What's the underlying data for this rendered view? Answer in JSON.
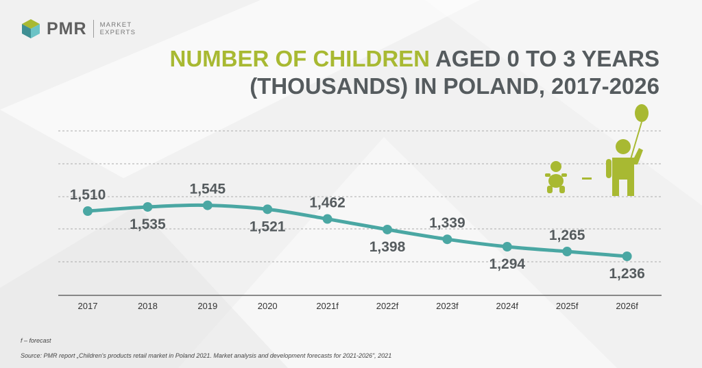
{
  "brand": {
    "name": "PMR",
    "tagline_line1": "MARKET",
    "tagline_line2": "EXPERTS"
  },
  "title": {
    "highlight": "NUMBER OF CHILDREN",
    "line1_rest": " AGED 0 TO 3 YEARS",
    "line2": "(THOUSANDS) IN POLAND, 2017-2026"
  },
  "colors": {
    "line": "#4aa7a3",
    "accent": "#a8b932",
    "text": "#555b5e"
  },
  "chart_data": {
    "type": "line",
    "title": "NUMBER OF CHILDREN AGED 0 TO 3 YEARS (THOUSANDS) IN POLAND, 2017-2026",
    "categories": [
      "2017",
      "2018",
      "2019",
      "2020",
      "2021f",
      "2022f",
      "2023f",
      "2024f",
      "2025f",
      "2026f"
    ],
    "values": [
      1510,
      1535,
      1545,
      1521,
      1462,
      1398,
      1339,
      1294,
      1265,
      1236
    ],
    "value_labels": [
      "1,510",
      "1,535",
      "1,545",
      "1,521",
      "1,462",
      "1,398",
      "1,339",
      "1,294",
      "1,265",
      "1,236"
    ],
    "label_position": [
      "above",
      "below",
      "above",
      "below",
      "above",
      "below",
      "above",
      "below",
      "above",
      "below"
    ],
    "grid": true,
    "legend": "none",
    "icons": [
      "baby-icon",
      "minus-icon",
      "child-with-balloon-icon"
    ]
  },
  "footnote": "f – forecast",
  "source": "Source: PMR report „Children's products retail market in Poland 2021. Market analysis and development forecasts for 2021-2026\", 2021"
}
